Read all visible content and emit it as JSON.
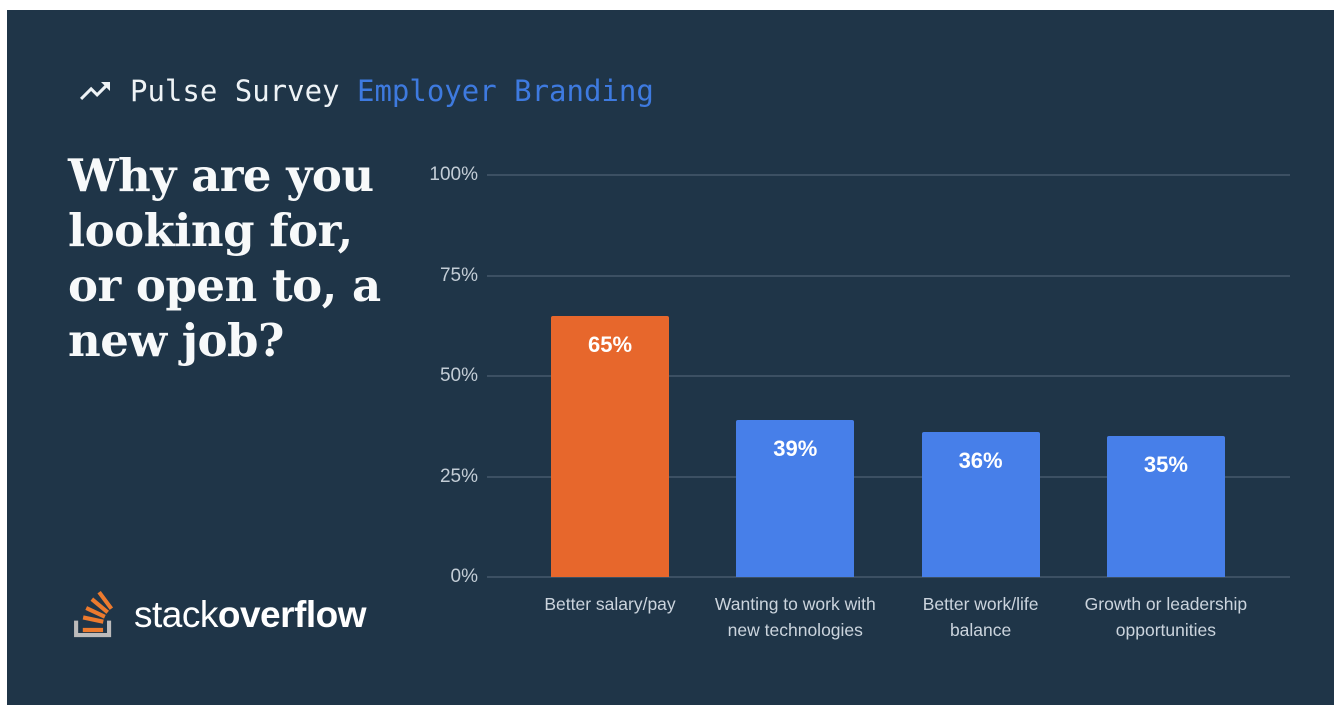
{
  "header": {
    "icon": "trending-up-icon",
    "survey_label": "Pulse Survey",
    "edition_label": "Employer Branding"
  },
  "title": {
    "full": "Why are you looking for, or open to, a new job?",
    "lines": [
      "Why are you",
      "looking for,",
      "or open to, a",
      "new job?"
    ]
  },
  "chart_data": {
    "type": "bar",
    "title": "Why are you looking for, or open to, a new job?",
    "categories": [
      "Better salary/pay",
      "Wanting to work with new technologies",
      "Better work/life balance",
      "Growth or leadership opportunities"
    ],
    "category_lines": [
      [
        "Better salary/pay"
      ],
      [
        "Wanting to work with",
        "new technologies"
      ],
      [
        "Better work/life",
        "balance"
      ],
      [
        "Growth or leadership",
        "opportunities"
      ]
    ],
    "values": [
      65,
      39,
      36,
      35
    ],
    "value_labels": [
      "65%",
      "39%",
      "36%",
      "35%"
    ],
    "ylim": [
      0,
      100
    ],
    "ytick_values": [
      0,
      25,
      50,
      75,
      100
    ],
    "ytick_labels": [
      "0%",
      "25%",
      "50%",
      "75%",
      "100%"
    ],
    "grid": true,
    "legend": false,
    "highlight_index": 0,
    "xlabel": "",
    "ylabel": ""
  },
  "logo": {
    "icon": "stackoverflow-icon",
    "part1": "stack",
    "part2": "overflow"
  },
  "colors": {
    "background": "#1F3548",
    "frame_border": "#FFFFFF",
    "accent_orange": "#E7672C",
    "bar_blue": "#477FE9",
    "header_blue": "#3E7ADF",
    "grid_line": "#475A6C",
    "tick_label": "#C3CDD6",
    "category_label": "#CBD4DD",
    "title_text": "#F7F9FA",
    "logo_tray_gray": "#BCBBBB",
    "logo_bars_orange": "#EC7A2E"
  }
}
